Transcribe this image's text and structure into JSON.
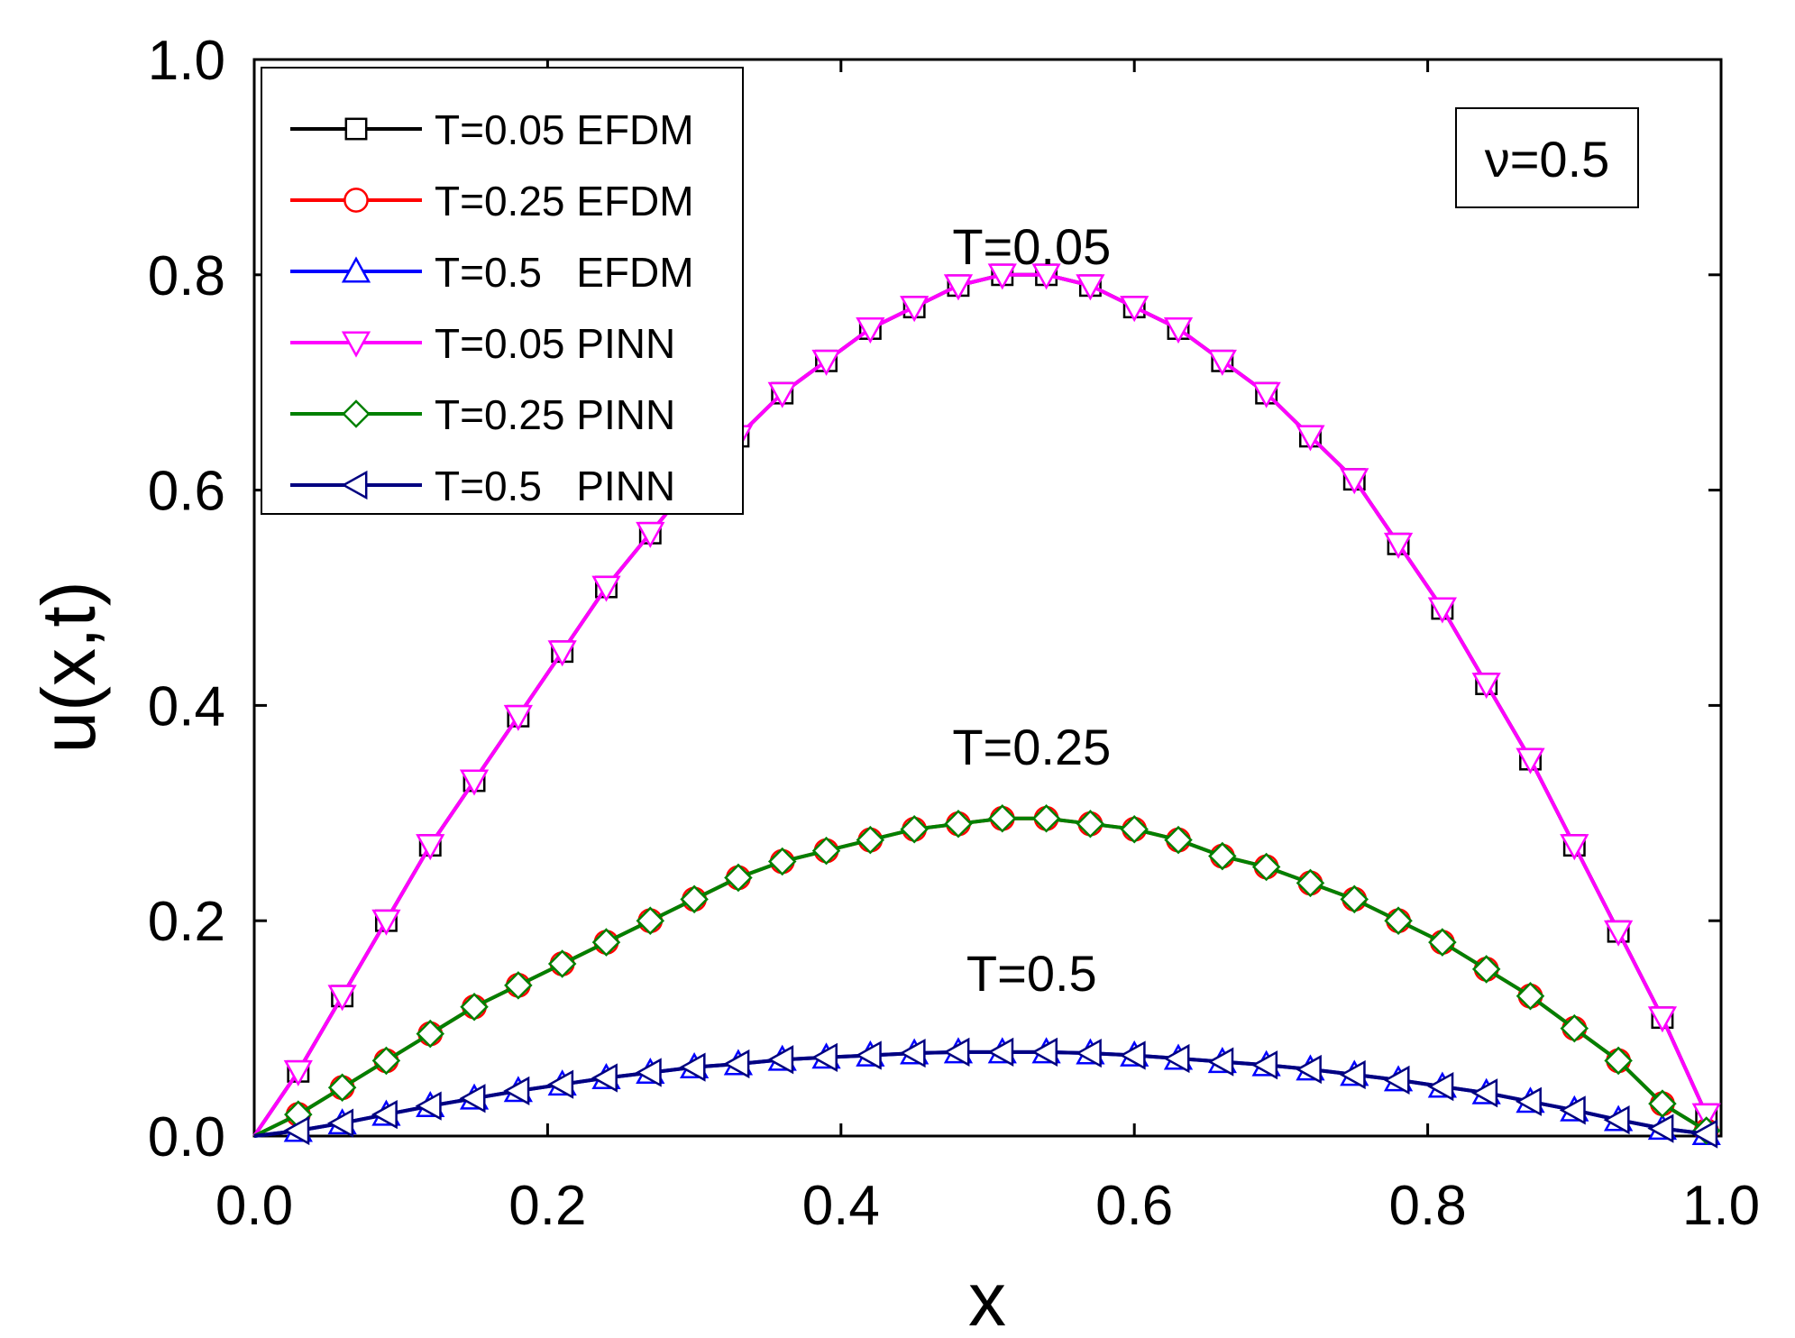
{
  "chart_data": {
    "type": "line",
    "title": "",
    "xlabel": "x",
    "ylabel": "u(x,t)",
    "xlim": [
      0.0,
      1.0
    ],
    "ylim": [
      0.0,
      1.0
    ],
    "x_ticks": [
      "0.0",
      "0.2",
      "0.4",
      "0.6",
      "0.8",
      "1.0"
    ],
    "y_ticks": [
      "0.0",
      "0.2",
      "0.4",
      "0.6",
      "0.8",
      "1.0"
    ],
    "grid": false,
    "legend_position": "top-left",
    "annotation_box": "ν=0.5",
    "curve_labels": [
      {
        "text": "T=0.05",
        "x": 0.53,
        "y": 0.81
      },
      {
        "text": "T=0.25",
        "x": 0.53,
        "y": 0.345
      },
      {
        "text": "T=0.5",
        "x": 0.53,
        "y": 0.135
      }
    ],
    "x": [
      0.0,
      0.03,
      0.06,
      0.09,
      0.12,
      0.15,
      0.18,
      0.21,
      0.24,
      0.27,
      0.3,
      0.33,
      0.36,
      0.39,
      0.42,
      0.45,
      0.48,
      0.51,
      0.54,
      0.57,
      0.6,
      0.63,
      0.66,
      0.69,
      0.72,
      0.75,
      0.78,
      0.81,
      0.84,
      0.87,
      0.9,
      0.93,
      0.96,
      0.99
    ],
    "series": [
      {
        "name": "T=0.05 EFDM",
        "color": "#000000",
        "marker": "square",
        "values": [
          0.0,
          0.06,
          0.13,
          0.2,
          0.27,
          0.33,
          0.39,
          0.45,
          0.51,
          0.56,
          0.61,
          0.65,
          0.69,
          0.72,
          0.75,
          0.77,
          0.79,
          0.8,
          0.8,
          0.79,
          0.77,
          0.75,
          0.72,
          0.69,
          0.65,
          0.61,
          0.55,
          0.49,
          0.42,
          0.35,
          0.27,
          0.19,
          0.11,
          0.02
        ]
      },
      {
        "name": "T=0.25 EFDM",
        "color": "#ff0000",
        "marker": "circle",
        "values": [
          0.0,
          0.02,
          0.045,
          0.07,
          0.095,
          0.12,
          0.14,
          0.16,
          0.18,
          0.2,
          0.22,
          0.24,
          0.255,
          0.265,
          0.275,
          0.285,
          0.29,
          0.295,
          0.295,
          0.29,
          0.285,
          0.275,
          0.26,
          0.25,
          0.235,
          0.22,
          0.2,
          0.18,
          0.155,
          0.13,
          0.1,
          0.07,
          0.03,
          0.005
        ]
      },
      {
        "name": "T=0.5   EFDM",
        "color": "#0000ff",
        "marker": "triangle-up",
        "values": [
          0.0,
          0.005,
          0.012,
          0.02,
          0.028,
          0.035,
          0.042,
          0.048,
          0.054,
          0.059,
          0.064,
          0.067,
          0.071,
          0.073,
          0.075,
          0.077,
          0.078,
          0.078,
          0.078,
          0.077,
          0.075,
          0.072,
          0.069,
          0.066,
          0.062,
          0.057,
          0.052,
          0.046,
          0.04,
          0.032,
          0.024,
          0.015,
          0.007,
          0.002
        ]
      },
      {
        "name": "T=0.05 PINN",
        "color": "#ff00ff",
        "marker": "triangle-down",
        "values": [
          0.0,
          0.06,
          0.13,
          0.2,
          0.27,
          0.33,
          0.39,
          0.45,
          0.51,
          0.56,
          0.61,
          0.65,
          0.69,
          0.72,
          0.75,
          0.77,
          0.79,
          0.8,
          0.8,
          0.79,
          0.77,
          0.75,
          0.72,
          0.69,
          0.65,
          0.61,
          0.55,
          0.49,
          0.42,
          0.35,
          0.27,
          0.19,
          0.11,
          0.02
        ]
      },
      {
        "name": "T=0.25 PINN",
        "color": "#008000",
        "marker": "diamond",
        "values": [
          0.0,
          0.02,
          0.045,
          0.07,
          0.095,
          0.12,
          0.14,
          0.16,
          0.18,
          0.2,
          0.22,
          0.24,
          0.255,
          0.265,
          0.275,
          0.285,
          0.29,
          0.295,
          0.295,
          0.29,
          0.285,
          0.275,
          0.26,
          0.25,
          0.235,
          0.22,
          0.2,
          0.18,
          0.155,
          0.13,
          0.1,
          0.07,
          0.03,
          0.005
        ]
      },
      {
        "name": "T=0.5   PINN",
        "color": "#000080",
        "marker": "triangle-left",
        "values": [
          0.0,
          0.005,
          0.012,
          0.02,
          0.028,
          0.035,
          0.042,
          0.048,
          0.054,
          0.059,
          0.064,
          0.067,
          0.071,
          0.073,
          0.075,
          0.077,
          0.078,
          0.078,
          0.078,
          0.077,
          0.075,
          0.072,
          0.069,
          0.066,
          0.062,
          0.057,
          0.052,
          0.046,
          0.04,
          0.032,
          0.024,
          0.015,
          0.007,
          0.002
        ]
      }
    ]
  }
}
